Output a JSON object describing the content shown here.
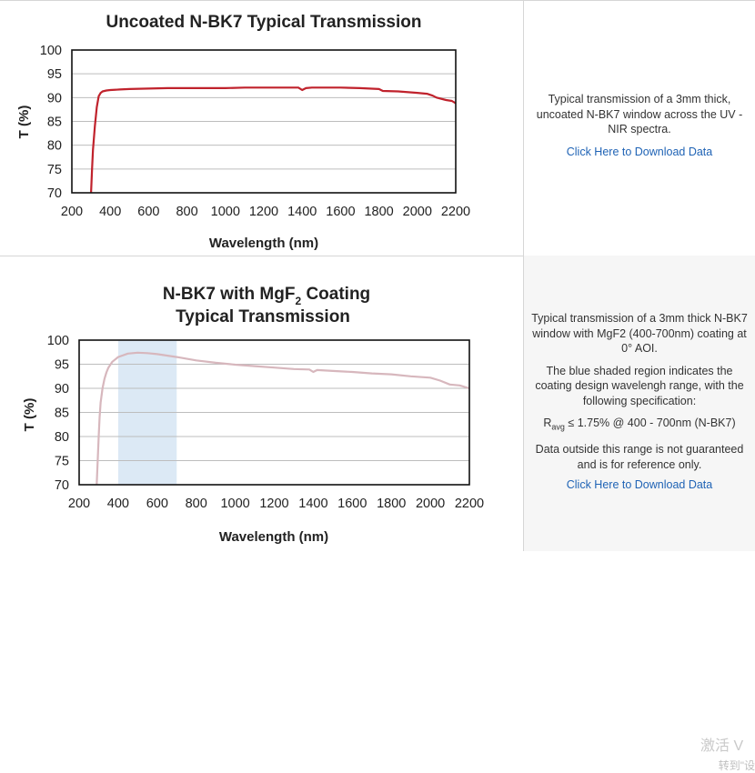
{
  "panels": [
    {
      "description": "Typical transmission of a 3mm thick, uncoated N-BK7 window across the UV - NIR spectra.",
      "download_label": "Click Here to Download Data"
    },
    {
      "description": "Typical transmission of a 3mm thick N-BK7 window with MgF2 (400-700nm) coating at 0° AOI.",
      "shaded_note": "The blue shaded region indicates the coating design wavelengh range, with the following specification:",
      "spec_symbol": "R",
      "spec_subscript": "avg",
      "spec_rest": " ≤ 1.75% @ 400 - 700nm (N-BK7)",
      "disclaimer": "Data outside this range is not guaranteed and is for reference only.",
      "download_label": "Click Here to Download Data"
    }
  ],
  "watermark": {
    "line1": "激活 V",
    "line2": "转到\"设"
  },
  "colors": {
    "line1": "#c0222c",
    "line2": "#d7b7bd",
    "shade": "#dce9f5"
  },
  "chart_data": [
    {
      "type": "line",
      "title": "Uncoated N-BK7 Typical Transmission",
      "xlabel": "Wavelength (nm)",
      "ylabel": "T (%)",
      "xlim": [
        200,
        2200
      ],
      "ylim": [
        70,
        100
      ],
      "xticks": [
        200,
        400,
        600,
        800,
        1000,
        1200,
        1400,
        1600,
        1800,
        2000,
        2200
      ],
      "yticks": [
        70,
        75,
        80,
        85,
        90,
        95,
        100
      ],
      "grid": true,
      "series": [
        {
          "x": [
            300,
            305,
            310,
            320,
            330,
            340,
            350,
            360,
            380,
            400,
            450,
            500,
            600,
            700,
            800,
            900,
            1000,
            1100,
            1200,
            1300,
            1380,
            1400,
            1420,
            1450,
            1500,
            1600,
            1700,
            1800,
            1820,
            1900,
            2000,
            2050,
            2080,
            2100,
            2150,
            2180,
            2200
          ],
          "y": [
            70,
            75,
            79,
            84,
            88,
            90.3,
            91,
            91.3,
            91.5,
            91.6,
            91.7,
            91.8,
            91.9,
            92.0,
            92.0,
            92.0,
            92.0,
            92.1,
            92.1,
            92.1,
            92.1,
            91.6,
            92.0,
            92.1,
            92.1,
            92.1,
            92.0,
            91.8,
            91.4,
            91.3,
            91.0,
            90.8,
            90.4,
            90.0,
            89.5,
            89.3,
            88.8
          ]
        }
      ]
    },
    {
      "type": "line",
      "title": "N-BK7 with MgF2 Coating Typical Transmission",
      "xlabel": "Wavelength (nm)",
      "ylabel": "T (%)",
      "xlim": [
        200,
        2200
      ],
      "ylim": [
        70,
        100
      ],
      "xticks": [
        200,
        400,
        600,
        800,
        1000,
        1200,
        1400,
        1600,
        1800,
        2000,
        2200
      ],
      "yticks": [
        70,
        75,
        80,
        85,
        90,
        95,
        100
      ],
      "grid": true,
      "shaded_region": [
        400,
        700
      ],
      "series": [
        {
          "x": [
            290,
            295,
            300,
            305,
            310,
            320,
            330,
            340,
            350,
            370,
            400,
            450,
            500,
            550,
            600,
            700,
            800,
            900,
            1000,
            1100,
            1200,
            1300,
            1380,
            1400,
            1420,
            1500,
            1600,
            1700,
            1800,
            1900,
            2000,
            2050,
            2100,
            2150,
            2200
          ],
          "y": [
            70,
            75,
            80,
            84,
            87,
            90,
            92,
            93.3,
            94.3,
            95.5,
            96.5,
            97.2,
            97.4,
            97.3,
            97.1,
            96.5,
            95.8,
            95.3,
            94.9,
            94.6,
            94.3,
            94.0,
            93.9,
            93.4,
            93.8,
            93.6,
            93.4,
            93.1,
            92.9,
            92.5,
            92.2,
            91.6,
            90.8,
            90.6,
            90.0
          ]
        }
      ]
    }
  ]
}
